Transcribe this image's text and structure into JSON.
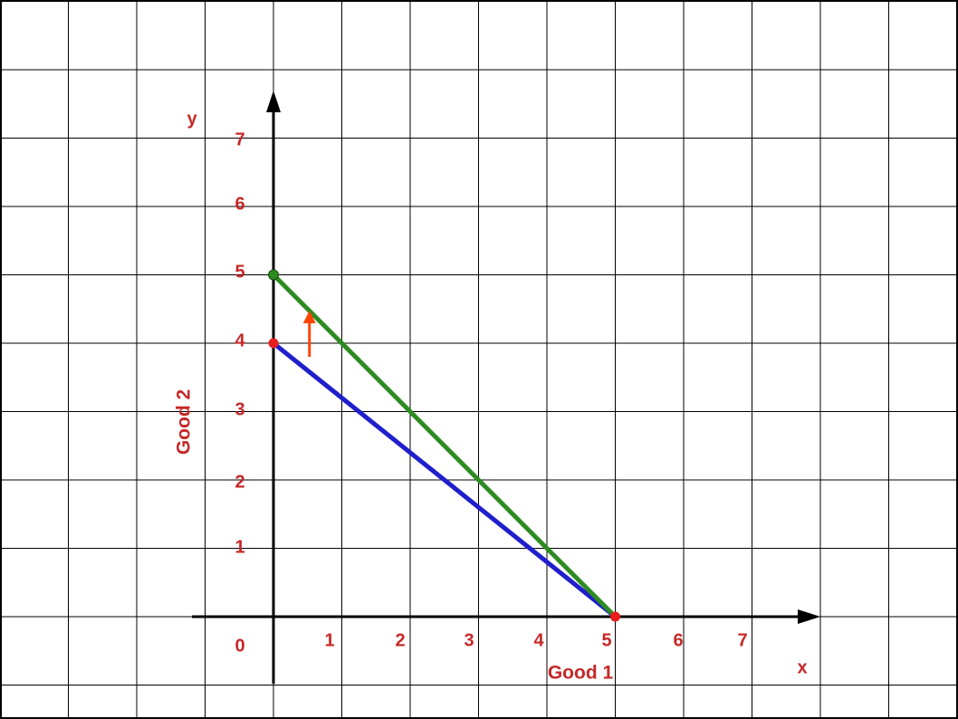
{
  "chart_data": {
    "type": "line",
    "title": "",
    "xlabel": "Good 1",
    "ylabel": "Good 2",
    "x_axis_letter": "x",
    "y_axis_letter": "y",
    "origin_label": "0",
    "x_ticks": [
      "1",
      "2",
      "3",
      "4",
      "5",
      "6",
      "7"
    ],
    "y_ticks": [
      "1",
      "2",
      "3",
      "4",
      "5",
      "6",
      "7"
    ],
    "xlim": [
      -1.2,
      10
    ],
    "ylim": [
      -1,
      8
    ],
    "grid": true,
    "series": [
      {
        "color": "#1f1fcc",
        "x": [
          0,
          5
        ],
        "y": [
          4,
          0
        ]
      },
      {
        "color": "#2e8b22",
        "x": [
          0,
          5
        ],
        "y": [
          5,
          0
        ]
      }
    ],
    "points": [
      {
        "x": 0,
        "y": 4,
        "color": "#e81e1e"
      },
      {
        "x": 0,
        "y": 5,
        "color": "#2e8b22"
      },
      {
        "x": 5,
        "y": 0,
        "color": "#e81e1e"
      }
    ],
    "annotations": [
      {
        "type": "arrow",
        "x": 0.5,
        "y_from": 3.8,
        "y_to": 4.45,
        "color": "#ff4400"
      }
    ]
  },
  "colors": {
    "grid": "#000000",
    "axis": "#000000",
    "label": "#c62828"
  }
}
